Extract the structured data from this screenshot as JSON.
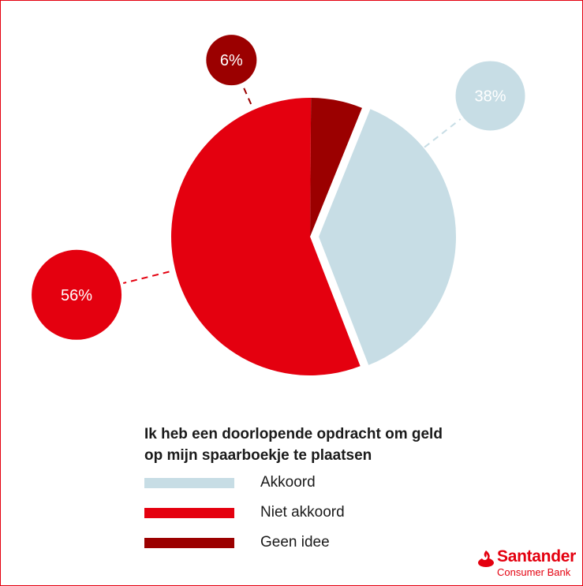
{
  "chart_data": {
    "type": "pie",
    "title": "Ik heb een doorlopende opdracht om geld op mijn spaarboekje te plaatsen",
    "title_lines": [
      "Ik heb een doorlopende opdracht om geld",
      "op mijn spaarboekje te plaatsen"
    ],
    "categories": [
      "Akkoord",
      "Niet akkoord",
      "Geen idee"
    ],
    "values": [
      38,
      56,
      6
    ],
    "value_labels": [
      "38%",
      "56%",
      "6%"
    ],
    "colors": [
      "#c7dde5",
      "#e4000f",
      "#9b0000"
    ],
    "exploded": "Akkoord",
    "legend_position": "bottom"
  },
  "branding": {
    "name": "Santander",
    "subtitle": "Consumer Bank",
    "color": "#e4000f"
  },
  "icons": {
    "logo": "flame-icon"
  }
}
